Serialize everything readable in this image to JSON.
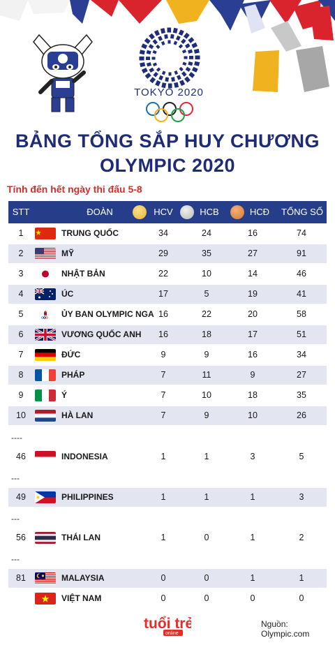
{
  "branding": {
    "games": "TOKYO 2020",
    "publisher": "tuổi trẻ",
    "publisher_sub": "online"
  },
  "title": {
    "line1": "BẢNG TỔNG SẮP HUY CHƯƠNG",
    "line2": "OLYMPIC 2020"
  },
  "subtitle": "Tính đến hết ngày thi đấu 5-8",
  "table": {
    "headers": {
      "stt": "STT",
      "team": "ĐOÀN",
      "gold": "HCV",
      "silver": "HCB",
      "bronze": "HCĐ",
      "total": "TỔNG SỐ"
    },
    "medal_colors": {
      "gold": "#e9b32f",
      "silver": "#b9b9b9",
      "bronze": "#d7772e"
    },
    "rows": [
      {
        "stt": "1",
        "flag": "china-flag-icon",
        "name": "TRUNG QUỐC",
        "gold": "34",
        "silver": "24",
        "bronze": "16",
        "total": "74"
      },
      {
        "stt": "2",
        "flag": "usa-flag-icon",
        "name": "MỸ",
        "gold": "29",
        "silver": "35",
        "bronze": "27",
        "total": "91"
      },
      {
        "stt": "3",
        "flag": "japan-flag-icon",
        "name": "NHẬT BẢN",
        "gold": "22",
        "silver": "10",
        "bronze": "14",
        "total": "46"
      },
      {
        "stt": "4",
        "flag": "australia-flag-icon",
        "name": "ÚC",
        "gold": "17",
        "silver": "5",
        "bronze": "19",
        "total": "41"
      },
      {
        "stt": "5",
        "flag": "roc-flag-icon",
        "name": "ỦY BAN OLYMPIC NGA",
        "gold": "16",
        "silver": "22",
        "bronze": "20",
        "total": "58"
      },
      {
        "stt": "6",
        "flag": "uk-flag-icon",
        "name": "VƯƠNG QUỐC ANH",
        "gold": "16",
        "silver": "18",
        "bronze": "17",
        "total": "51"
      },
      {
        "stt": "7",
        "flag": "germany-flag-icon",
        "name": "ĐỨC",
        "gold": "9",
        "silver": "9",
        "bronze": "16",
        "total": "34"
      },
      {
        "stt": "8",
        "flag": "france-flag-icon",
        "name": "PHÁP",
        "gold": "7",
        "silver": "11",
        "bronze": "9",
        "total": "27"
      },
      {
        "stt": "9",
        "flag": "italy-flag-icon",
        "name": "Ý",
        "gold": "7",
        "silver": "10",
        "bronze": "18",
        "total": "35"
      },
      {
        "stt": "10",
        "flag": "netherlands-flag-icon",
        "name": "HÀ LAN",
        "gold": "7",
        "silver": "9",
        "bronze": "10",
        "total": "26"
      },
      {
        "stt": "46",
        "flag": "indonesia-flag-icon",
        "name": "INDONESIA",
        "gold": "1",
        "silver": "1",
        "bronze": "3",
        "total": "5"
      },
      {
        "stt": "49",
        "flag": "philippines-flag-icon",
        "name": "PHILIPPINES",
        "gold": "1",
        "silver": "1",
        "bronze": "1",
        "total": "3"
      },
      {
        "stt": "56",
        "flag": "thailand-flag-icon",
        "name": "THÁI LAN",
        "gold": "1",
        "silver": "0",
        "bronze": "1",
        "total": "2"
      },
      {
        "stt": "81",
        "flag": "malaysia-flag-icon",
        "name": "MALAYSIA",
        "gold": "0",
        "silver": "0",
        "bronze": "1",
        "total": "1"
      },
      {
        "stt": "",
        "flag": "vietnam-flag-icon",
        "name": "VIỆT NAM",
        "gold": "0",
        "silver": "0",
        "bronze": "0",
        "total": "0"
      }
    ],
    "separators": [
      "----",
      "---",
      "---",
      "---"
    ]
  },
  "source": "Nguồn: Olympic.com"
}
